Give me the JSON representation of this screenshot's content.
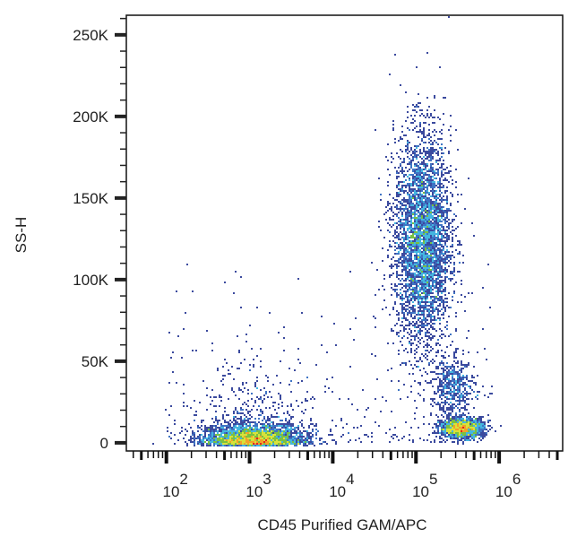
{
  "chart_data": {
    "type": "heatmap",
    "subtype": "flow-cytometry density dot plot",
    "xlabel": "CD45 Purified GAM/APC",
    "ylabel": "SS-H",
    "x_scale": "log",
    "xlim": [
      33,
      5800000
    ],
    "ylim": [
      -5000,
      262000
    ],
    "x_ticks": [
      {
        "base": "10",
        "exp": "2",
        "value": 100
      },
      {
        "base": "10",
        "exp": "3",
        "value": 1000
      },
      {
        "base": "10",
        "exp": "4",
        "value": 10000
      },
      {
        "base": "10",
        "exp": "5",
        "value": 100000
      },
      {
        "base": "10",
        "exp": "6",
        "value": 1000000
      }
    ],
    "y_ticks": [
      {
        "label": "0",
        "value": 0
      },
      {
        "label": "50K",
        "value": 50000
      },
      {
        "label": "100K",
        "value": 100000
      },
      {
        "label": "150K",
        "value": 150000
      },
      {
        "label": "200K",
        "value": 200000
      },
      {
        "label": "250K",
        "value": 250000
      }
    ],
    "colormap": [
      "#3b4a9e",
      "#3f74c4",
      "#44b6e0",
      "#79c043",
      "#d8e23a",
      "#f3a02a",
      "#e3241f"
    ],
    "populations": [
      {
        "log10_x_center": 3.05,
        "log10_x_sd": 0.3,
        "y_center": 3000,
        "y_sd": 5000,
        "relative_events": 3500
      },
      {
        "log10_x_center": 5.08,
        "log10_x_sd": 0.17,
        "y_center": 124000,
        "y_sd": 32000,
        "relative_events": 4200
      },
      {
        "log10_x_center": 5.55,
        "log10_x_sd": 0.13,
        "y_center": 9000,
        "y_sd": 3000,
        "relative_events": 1400
      },
      {
        "log10_x_center": 5.45,
        "log10_x_sd": 0.13,
        "y_center": 34000,
        "y_sd": 9000,
        "relative_events": 500
      }
    ],
    "grid": false,
    "legend": "none"
  }
}
